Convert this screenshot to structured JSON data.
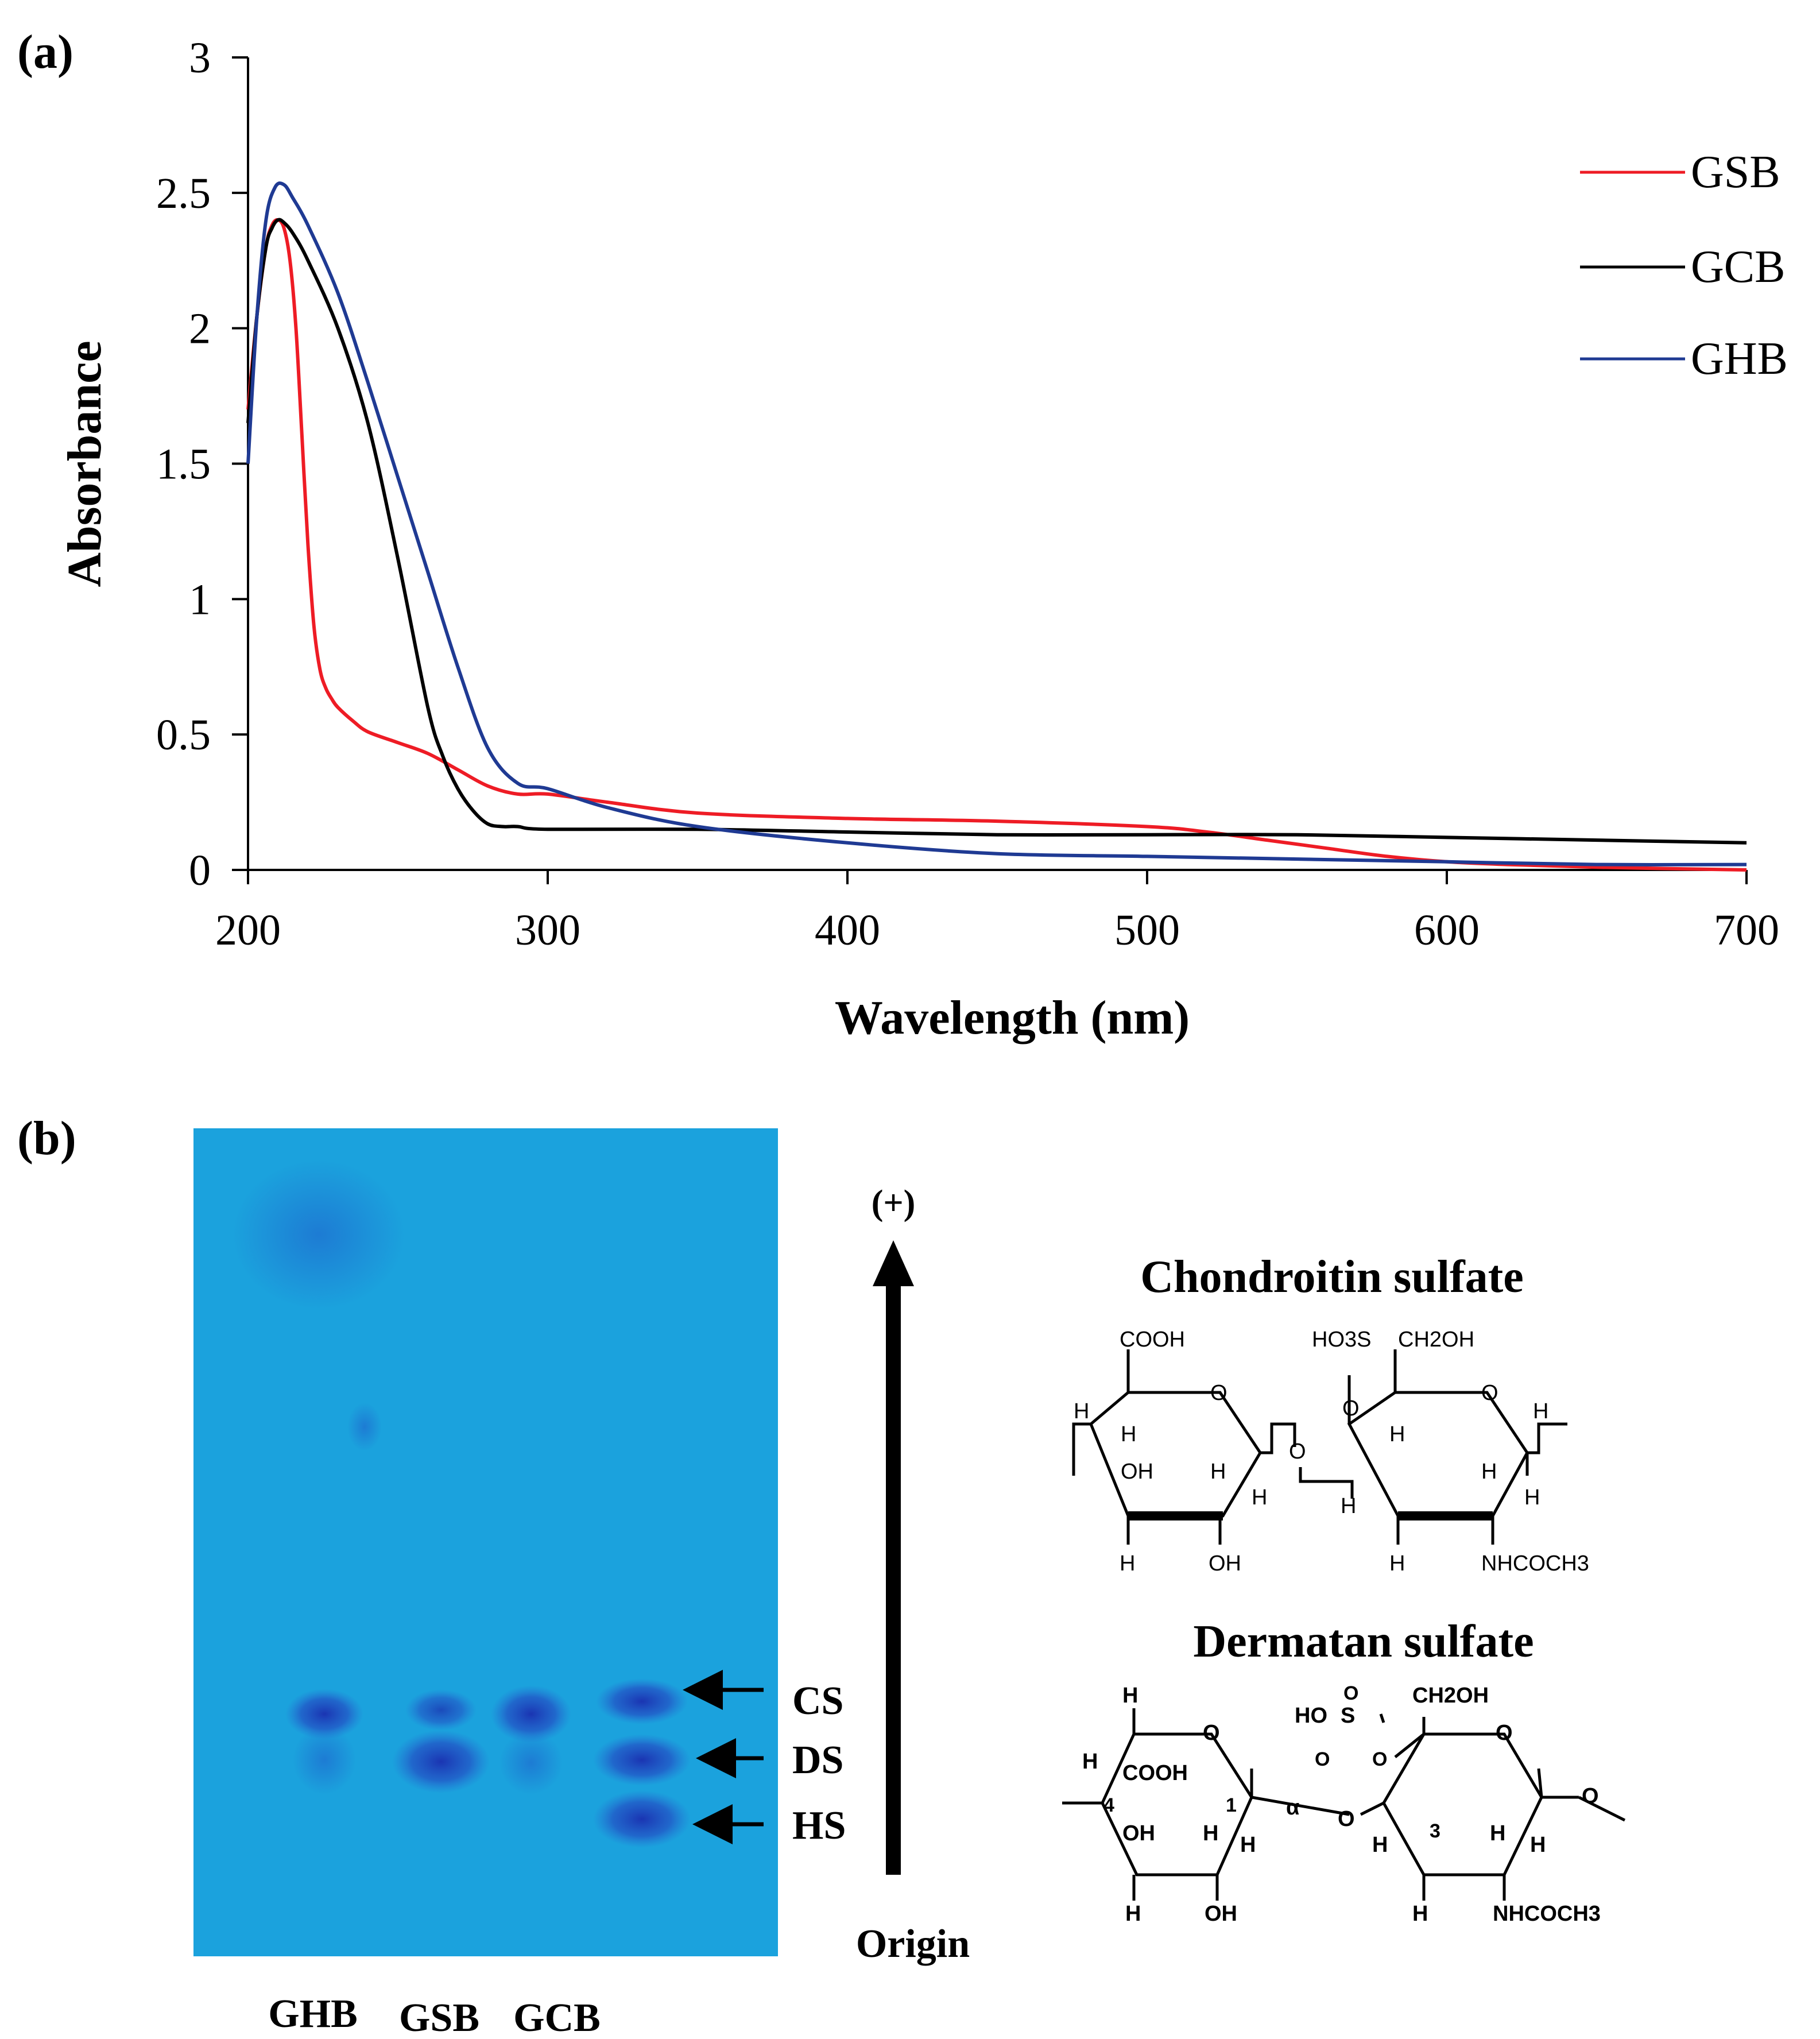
{
  "panels": {
    "a": "(a)",
    "b": "(b)"
  },
  "chart_data": {
    "type": "line",
    "xlabel": "Wavelength (nm)",
    "ylabel": "Absorbance",
    "xlim": [
      200,
      700
    ],
    "ylim": [
      0,
      3
    ],
    "xticks": [
      "200",
      "300",
      "400",
      "500",
      "600",
      "700"
    ],
    "yticks": [
      "0",
      "0.5",
      "1",
      "1.5",
      "2",
      "2.5",
      "3"
    ],
    "grid": false,
    "legend_position": "top-right",
    "series": [
      {
        "name": "GSB",
        "color": "#ee1c25",
        "x": [
          200,
          203,
          206,
          208,
          210,
          212,
          214,
          216,
          218,
          220,
          222,
          224,
          226,
          228,
          230,
          235,
          240,
          250,
          260,
          270,
          280,
          290,
          300,
          320,
          350,
          400,
          450,
          500,
          520,
          540,
          560,
          580,
          600,
          620,
          650,
          700
        ],
        "y": [
          1.7,
          2.05,
          2.3,
          2.38,
          2.4,
          2.37,
          2.25,
          2.0,
          1.6,
          1.2,
          0.9,
          0.74,
          0.67,
          0.63,
          0.6,
          0.55,
          0.51,
          0.47,
          0.43,
          0.37,
          0.31,
          0.28,
          0.28,
          0.25,
          0.21,
          0.19,
          0.18,
          0.16,
          0.14,
          0.11,
          0.08,
          0.05,
          0.03,
          0.02,
          0.01,
          0.0
        ]
      },
      {
        "name": "GCB",
        "color": "#000000",
        "x": [
          200,
          203,
          206,
          208,
          210,
          212,
          215,
          220,
          230,
          240,
          250,
          260,
          265,
          270,
          275,
          280,
          285,
          290,
          300,
          350,
          400,
          450,
          500,
          550,
          600,
          650,
          700
        ],
        "y": [
          1.65,
          2.05,
          2.3,
          2.37,
          2.4,
          2.39,
          2.35,
          2.25,
          2.0,
          1.65,
          1.15,
          0.6,
          0.42,
          0.3,
          0.22,
          0.17,
          0.16,
          0.16,
          0.15,
          0.15,
          0.14,
          0.13,
          0.13,
          0.13,
          0.12,
          0.11,
          0.1
        ]
      },
      {
        "name": "GHB",
        "color": "#1f3a93",
        "x": [
          200,
          203,
          206,
          209,
          212,
          215,
          220,
          230,
          240,
          250,
          260,
          270,
          280,
          290,
          300,
          320,
          350,
          400,
          450,
          500,
          550,
          600,
          650,
          700
        ],
        "y": [
          1.5,
          2.05,
          2.4,
          2.52,
          2.53,
          2.48,
          2.38,
          2.13,
          1.8,
          1.45,
          1.1,
          0.75,
          0.45,
          0.32,
          0.3,
          0.23,
          0.16,
          0.1,
          0.06,
          0.05,
          0.04,
          0.03,
          0.02,
          0.02
        ]
      }
    ]
  },
  "electrophoresis": {
    "lanes": [
      "GHB",
      "GSB",
      "GCB"
    ],
    "band_labels": [
      "CS",
      "DS",
      "HS"
    ],
    "direction_top": "(+)",
    "direction_bottom": "Origin",
    "gel_color": "#1fa6e0"
  },
  "structures": {
    "chondroitin": {
      "title": "Chondroitin sulfate",
      "labels": [
        "COOH",
        "HO3S",
        "CH2OH",
        "O",
        "O",
        "O",
        "O",
        "H",
        "H",
        "H",
        "H",
        "OH",
        "H",
        "H",
        "H",
        "H",
        "H",
        "H",
        "OH",
        "H",
        "NHCOCH3"
      ]
    },
    "dermatan": {
      "title": "Dermatan sulfate",
      "labels": [
        "H",
        "O",
        "HO",
        "S",
        "O",
        "O",
        "O",
        "CH2OH",
        "O",
        "H",
        "COOH",
        "4",
        "1",
        "α",
        "O",
        "O",
        "OH",
        "H",
        "H",
        "H",
        "3",
        "H",
        "H",
        "H",
        "OH",
        "H",
        "NHCOCH3"
      ]
    }
  }
}
